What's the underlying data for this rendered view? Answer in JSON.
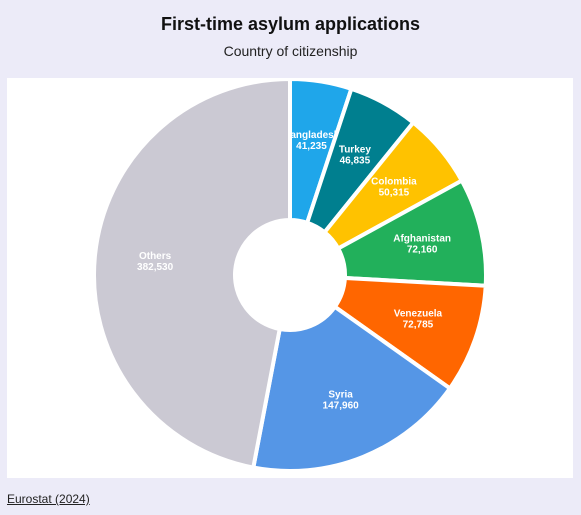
{
  "chart_data": {
    "type": "donut",
    "title": "First-time asylum applications",
    "subtitle": "Country of citizenship",
    "source": "Eurostat (2024)",
    "categories": [
      "Bangladesh",
      "Turkey",
      "Colombia",
      "Afghanistan",
      "Venezuela",
      "Syria",
      "Others"
    ],
    "values": [
      41235,
      46835,
      50315,
      72160,
      72785,
      147960,
      382530
    ],
    "value_labels": [
      "41,235",
      "46,835",
      "50,315",
      "72,160",
      "72,785",
      "147,960",
      "382,530"
    ],
    "colors": [
      "#1fa6ea",
      "#007f8f",
      "#ffc200",
      "#22b05b",
      "#ff6600",
      "#5596e6",
      "#cbc9d3"
    ]
  }
}
